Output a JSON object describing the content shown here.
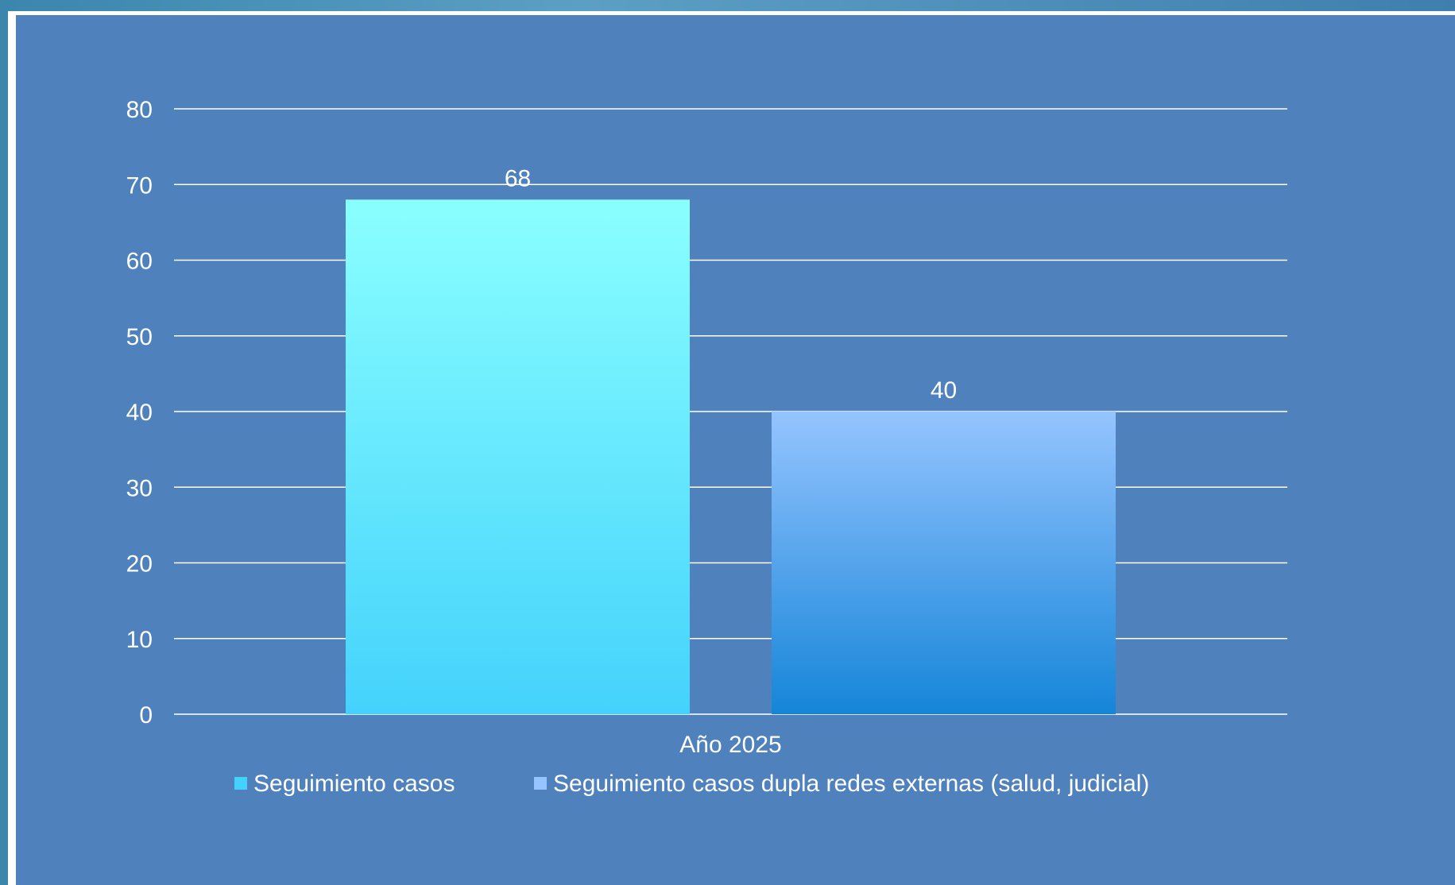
{
  "colors": {
    "background": "#4f81bd",
    "gridline": "#ffffff",
    "series1_top": "#8affff",
    "series1_bottom": "#44d2fc",
    "series2_top": "#95c4ff",
    "series2_bottom": "#1585d8"
  },
  "chart_data": {
    "type": "bar",
    "categories": [
      "Año 2025"
    ],
    "series": [
      {
        "name": "Seguimiento casos",
        "values": [
          68
        ]
      },
      {
        "name": "Seguimiento casos dupla redes externas (salud, judicial)",
        "values": [
          40
        ]
      }
    ],
    "ylim": [
      0,
      80
    ],
    "yticks": [
      0,
      10,
      20,
      30,
      40,
      50,
      60,
      70,
      80
    ],
    "grid": true,
    "legend_position": "bottom",
    "data_labels": true
  }
}
